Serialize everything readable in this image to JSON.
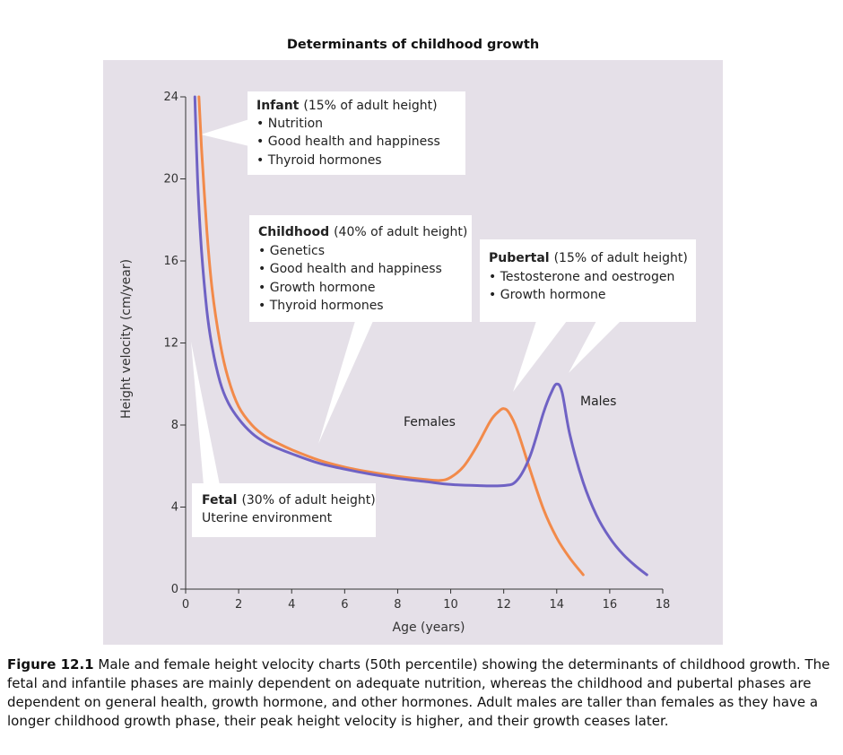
{
  "chart_data": {
    "type": "line",
    "title": "Determinants of childhood growth",
    "xlabel": "Age (years)",
    "ylabel": "Height velocity (cm/year)",
    "xlim": [
      0,
      18
    ],
    "ylim": [
      0,
      24
    ],
    "xticks": [
      0,
      2,
      4,
      6,
      8,
      10,
      12,
      14,
      16,
      18
    ],
    "yticks": [
      0,
      4,
      8,
      12,
      16,
      20,
      24
    ],
    "grid": false,
    "series": [
      {
        "name": "Females",
        "color": "#F28A4A",
        "x": [
          0.5,
          0.6,
          0.8,
          1.0,
          1.3,
          1.6,
          2.0,
          2.5,
          3.0,
          3.5,
          4.0,
          5.0,
          6.0,
          7.0,
          8.0,
          9.0,
          9.6,
          10.0,
          10.5,
          11.0,
          11.5,
          11.8,
          12.0,
          12.2,
          12.5,
          13.0,
          13.5,
          14.0,
          14.5,
          15.0
        ],
        "y": [
          24,
          21.5,
          17.5,
          14.6,
          12.0,
          10.3,
          8.9,
          8.0,
          7.45,
          7.1,
          6.8,
          6.3,
          5.95,
          5.7,
          5.5,
          5.35,
          5.3,
          5.45,
          6.0,
          7.0,
          8.2,
          8.65,
          8.8,
          8.6,
          7.8,
          5.8,
          3.9,
          2.5,
          1.5,
          0.7
        ]
      },
      {
        "name": "Males",
        "color": "#6F62C4",
        "x": [
          0.35,
          0.45,
          0.6,
          0.8,
          1.0,
          1.3,
          1.6,
          2.0,
          2.5,
          3.0,
          3.5,
          4.0,
          5.0,
          6.0,
          7.0,
          8.0,
          9.0,
          10.0,
          11.0,
          12.0,
          12.5,
          13.0,
          13.5,
          13.8,
          14.0,
          14.2,
          14.5,
          15.0,
          15.5,
          16.0,
          16.5,
          17.0,
          17.4
        ],
        "y": [
          24,
          20.0,
          16.5,
          13.6,
          11.8,
          10.1,
          9.1,
          8.3,
          7.6,
          7.15,
          6.85,
          6.6,
          6.15,
          5.85,
          5.6,
          5.4,
          5.25,
          5.1,
          5.05,
          5.05,
          5.3,
          6.5,
          8.6,
          9.6,
          10.0,
          9.6,
          7.5,
          5.2,
          3.6,
          2.5,
          1.7,
          1.1,
          0.7
        ]
      }
    ],
    "annotations": {
      "infant": {
        "title": "Infant",
        "detail": "(15% of adult height)",
        "items": [
          "Nutrition",
          "Good health and happiness",
          "Thyroid hormones"
        ]
      },
      "childhood": {
        "title": "Childhood",
        "detail": "(40% of adult height)",
        "items": [
          "Genetics",
          "Good health and  happiness",
          "Growth hormone",
          "Thyroid hormones"
        ]
      },
      "pubertal": {
        "title": "Pubertal",
        "detail": "(15% of adult height)",
        "items": [
          "Testosterone and oestrogen",
          "Growth hormone"
        ]
      },
      "fetal": {
        "title": "Fetal",
        "detail": "(30% of adult height)",
        "line": "Uterine environment"
      },
      "females_label": "Females",
      "males_label": "Males"
    },
    "colors": {
      "plot_background": "#E5E0E8",
      "callout_fill": "#FFFFFF",
      "axis": "#333333"
    }
  },
  "caption": {
    "label": "Figure 12.1",
    "text": " Male and female height velocity charts (50th percentile) showing the determinants of childhood growth. The fetal and infantile phases are mainly dependent on adequate nutrition, whereas the childhood and pubertal phases are dependent on general health, growth hormone, and other hormones. Adult males are taller than females as they have a longer childhood growth phase, their peak height velocity is higher, and their growth ceases later."
  }
}
